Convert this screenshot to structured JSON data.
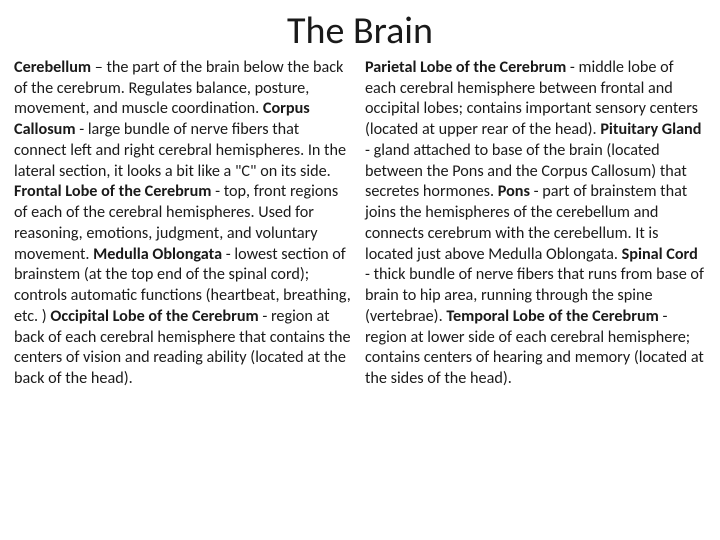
{
  "title": "The Brain",
  "left": {
    "e1": {
      "term": "Cerebellum",
      "sep": " – ",
      "desc": "the part of the brain below the back of the cerebrum. Regulates balance, posture, movement, and muscle coordination."
    },
    "e2": {
      "term": "Corpus Callosum",
      "sep": " - ",
      "desc": "large bundle of nerve fibers that connect left and right cerebral hemispheres. In the lateral section, it looks a bit like a \"C\" on its side."
    },
    "e3": {
      "term": "Frontal Lobe of the Cerebrum",
      "sep": " - ",
      "desc": "top, front regions of each of the cerebral hemispheres. Used for reasoning, emotions, judgment, and voluntary movement."
    },
    "e4": {
      "term": "Medulla Oblongata",
      "sep": " - ",
      "desc": "lowest section of brainstem (at the top end of the spinal cord); controls automatic functions (heartbeat, breathing, etc. )"
    },
    "e5": {
      "term": "Occipital Lobe of the Cerebrum",
      "sep": " - ",
      "desc": "region at back of each cerebral hemisphere that contains the centers of vision and reading ability (located at the back of the head)."
    }
  },
  "right": {
    "e1": {
      "term": "Parietal Lobe of the Cerebrum",
      "sep": " - ",
      "desc": "middle lobe of each cerebral hemisphere between frontal and occipital lobes; contains important sensory centers (located at upper rear of the head)."
    },
    "e2": {
      "term": "Pituitary Gland",
      "sep": " - ",
      "desc": "gland attached to base of the brain (located between the Pons and the Corpus Callosum) that secretes hormones."
    },
    "e3": {
      "term": "Pons",
      "sep": " - ",
      "desc": "part of  brainstem that joins the hemispheres of the cerebellum and connects cerebrum with the cerebellum. It is located just above Medulla Oblongata."
    },
    "e4": {
      "term": "Spinal Cord",
      "sep": " - ",
      "desc": "thick bundle of nerve fibers that runs from base of  brain to  hip area, running through the spine (vertebrae)."
    },
    "e5": {
      "term": "Temporal Lobe of the Cerebrum",
      "sep": " - ",
      "desc": "region at lower side of each cerebral hemisphere; contains centers of hearing and memory (located at the sides of the head)."
    }
  },
  "colors": {
    "background": "#ffffff",
    "text": "#1a1a1a"
  },
  "typography": {
    "title_fontsize": 38,
    "body_fontsize": 16.2,
    "line_height": 1.28,
    "font_family": "Calibri"
  }
}
